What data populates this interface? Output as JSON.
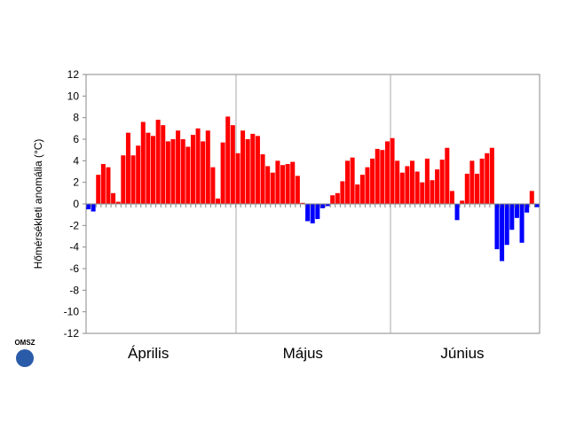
{
  "chart_data": {
    "type": "bar",
    "y_label": "Hőmérsékleti anomália (°C)",
    "logo": "OMSZ",
    "positive_color": "#ff0000",
    "negative_color": "#0000ff",
    "ylim": [
      -12,
      12
    ],
    "yticks": [
      -12,
      -10,
      -8,
      -6,
      -4,
      -2,
      0,
      2,
      4,
      6,
      8,
      10,
      12
    ],
    "categories": [
      null,
      null,
      null,
      null,
      null,
      null,
      null,
      null,
      null,
      null,
      null,
      null,
      "Április",
      null,
      null,
      null,
      null,
      null,
      null,
      null,
      null,
      null,
      null,
      null,
      null,
      null,
      null,
      null,
      null,
      null,
      null,
      null,
      null,
      null,
      null,
      null,
      null,
      null,
      null,
      null,
      null,
      null,
      null,
      "Május",
      null,
      null,
      null,
      null,
      null,
      null,
      null,
      null,
      null,
      null,
      null,
      null,
      null,
      null,
      null,
      null,
      null,
      null,
      null,
      null,
      null,
      null,
      null,
      null,
      null,
      null,
      null,
      null,
      null,
      null,
      null,
      "Június",
      null,
      null,
      null,
      null,
      null,
      null,
      null,
      null,
      null,
      null,
      null,
      null,
      null,
      null,
      null
    ],
    "values": [
      -0.5,
      -0.7,
      2.7,
      3.7,
      3.4,
      1.0,
      0.2,
      4.5,
      6.6,
      4.5,
      5.4,
      7.6,
      6.6,
      6.3,
      7.8,
      7.3,
      5.8,
      6.0,
      6.8,
      6.0,
      5.3,
      6.4,
      7.0,
      5.8,
      6.8,
      3.4,
      0.5,
      5.7,
      8.1,
      7.3,
      4.7,
      6.8,
      6.0,
      6.5,
      6.3,
      4.6,
      3.5,
      2.9,
      4.0,
      3.6,
      3.7,
      3.9,
      2.6,
      0.1,
      -1.6,
      -1.8,
      -1.4,
      -0.4,
      -0.2,
      0.8,
      1.0,
      2.1,
      4.0,
      4.3,
      1.8,
      2.7,
      3.4,
      4.2,
      5.1,
      5.0,
      5.8,
      6.1,
      4.0,
      2.9,
      3.5,
      4.0,
      3.0,
      2.0,
      4.2,
      2.2,
      3.2,
      4.1,
      5.2,
      1.2,
      -1.5,
      0.3,
      2.8,
      4.0,
      2.8,
      4.2,
      4.7,
      5.2,
      -4.2,
      -5.3,
      -3.8,
      -2.4,
      -1.3,
      -3.6,
      -0.8,
      1.2,
      -0.3
    ]
  }
}
